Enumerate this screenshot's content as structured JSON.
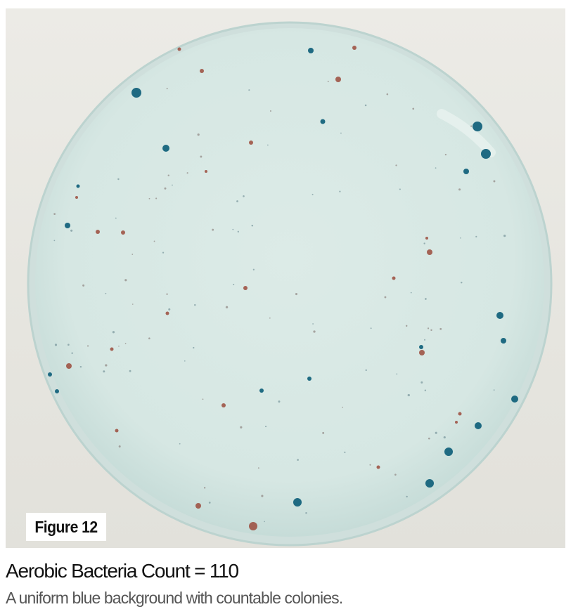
{
  "figure": {
    "label": "Figure 12",
    "image_subject": "petri-dish-with-blue-and-red-bacterial-colonies",
    "colors": {
      "agar": "#d7e8e4",
      "rim": "#c9dedb",
      "blue_colony": "#0f5f7a",
      "red_colony": "#9b4b3c",
      "background": "#e8e7e1"
    }
  },
  "caption": {
    "title": "Aerobic Bacteria Count = 110",
    "subtitle": "A uniform blue background with countable colonies."
  }
}
